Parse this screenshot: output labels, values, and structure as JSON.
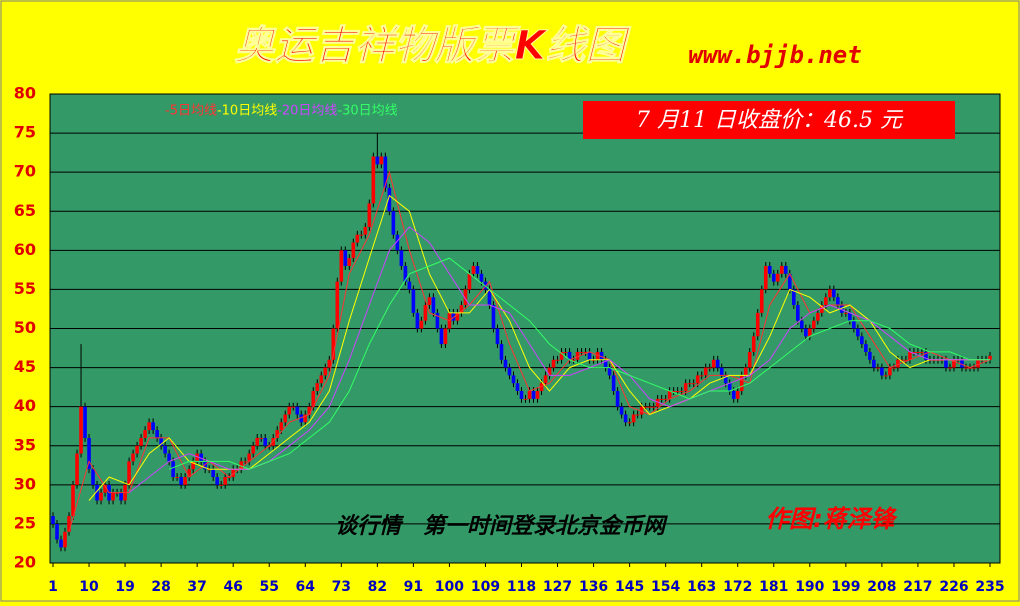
{
  "chart_data": {
    "type": "candlestick",
    "title": "奥运吉祥物版票K线图",
    "site": "www.bjjb.net",
    "price_box": "7 月11 日收盘价：46.5 元",
    "footer": "谈行情　第一时间登录北京金币网",
    "author": "作图:蒋泽锋",
    "up_color": "#ff0000",
    "down_color": "#0000ff",
    "background": "#339966",
    "grid": true,
    "ylim": [
      20,
      80
    ],
    "yticks": [
      20,
      25,
      30,
      35,
      40,
      45,
      50,
      55,
      60,
      65,
      70,
      75,
      80
    ],
    "xlim": [
      1,
      235
    ],
    "xticks": [
      1,
      10,
      19,
      28,
      37,
      46,
      55,
      64,
      73,
      82,
      91,
      100,
      109,
      118,
      127,
      136,
      145,
      154,
      163,
      172,
      181,
      190,
      199,
      208,
      217,
      226,
      235
    ],
    "open": [
      26,
      25,
      23,
      22,
      24,
      26,
      30,
      34,
      40,
      36,
      32,
      30,
      28,
      29,
      30,
      28,
      29,
      29,
      28,
      30,
      33,
      34,
      35,
      36,
      37,
      38,
      37,
      36,
      35,
      34,
      33,
      31,
      31,
      30,
      31,
      32,
      33,
      34,
      33,
      32,
      32,
      31,
      30,
      30,
      31,
      31,
      32,
      32,
      33,
      33,
      34,
      35,
      36,
      36,
      35,
      35,
      36,
      37,
      38,
      39,
      40,
      40,
      39,
      38,
      39,
      40,
      42,
      43,
      44,
      45,
      46,
      50,
      56,
      60,
      58,
      59,
      61,
      62,
      62,
      63,
      66,
      72,
      71,
      72,
      68,
      65,
      62,
      60,
      58,
      56,
      55,
      52,
      50,
      51,
      53,
      54,
      52,
      50,
      48,
      50,
      52,
      51,
      52,
      53,
      55,
      57,
      58,
      57,
      56,
      55,
      53,
      50,
      48,
      46,
      45,
      44,
      43,
      42,
      41,
      41,
      42,
      41,
      42,
      43,
      44,
      45,
      46,
      46,
      47,
      47,
      46,
      46,
      47,
      47,
      47,
      46,
      46,
      47,
      46,
      45,
      44,
      42,
      40,
      39,
      38,
      38,
      39,
      39,
      40,
      40,
      40,
      40,
      41,
      41,
      41,
      42,
      42,
      42,
      42,
      43,
      43,
      43,
      44,
      44,
      45,
      45,
      46,
      45,
      44,
      43,
      42,
      41,
      42,
      44,
      45,
      47,
      49,
      52,
      55,
      58,
      57,
      56,
      57,
      58,
      57,
      55,
      53,
      51,
      50,
      49,
      50,
      51,
      52,
      53,
      54,
      55,
      54,
      53,
      52,
      52,
      51,
      50,
      49,
      48,
      47,
      46,
      45,
      45,
      44,
      44,
      45,
      45,
      46,
      46,
      46,
      47,
      47,
      47,
      47,
      46,
      46,
      46,
      46,
      46,
      45,
      45,
      46,
      46,
      45,
      45,
      45,
      45,
      46,
      46,
      46
    ],
    "high": [
      26.5,
      25.5,
      23.5,
      24.5,
      26.5,
      30.5,
      34.5,
      48,
      40.5,
      36.5,
      32.5,
      30.5,
      29.5,
      30.5,
      30.5,
      29.5,
      29.5,
      29.5,
      30.5,
      33.5,
      34.5,
      35.5,
      36.5,
      37.5,
      38.5,
      38.5,
      37.5,
      36.5,
      35.5,
      34.5,
      33.5,
      31.5,
      31.5,
      31.5,
      32.5,
      33.5,
      34.5,
      34.5,
      33.5,
      32.5,
      32.5,
      31.5,
      30.5,
      31.5,
      31.5,
      32.5,
      32.5,
      33.5,
      33.5,
      34.5,
      35.5,
      36.5,
      36.5,
      36.5,
      35.5,
      36.5,
      37.5,
      38.5,
      39.5,
      40.5,
      40.5,
      40.5,
      39.5,
      39.5,
      40.5,
      42.5,
      43.5,
      44.5,
      45.5,
      46.5,
      50.5,
      56.5,
      60.5,
      60.5,
      59.5,
      61.5,
      62.5,
      62.5,
      63.5,
      66.5,
      72.5,
      75,
      72.5,
      72.5,
      68.5,
      65.5,
      62.5,
      60.5,
      58.5,
      56.5,
      55.5,
      52.5,
      51.5,
      53.5,
      54.5,
      54.5,
      52.5,
      50.5,
      50.5,
      52.5,
      52.5,
      52.5,
      53.5,
      55.5,
      57.5,
      58.5,
      58.5,
      57.5,
      56.5,
      55.5,
      53.5,
      50.5,
      48.5,
      46.5,
      45.5,
      44.5,
      43.5,
      42.5,
      41.5,
      42.5,
      42.5,
      42.5,
      43.5,
      44.5,
      45.5,
      46.5,
      46.5,
      47.5,
      47.5,
      47.5,
      46.5,
      47.5,
      47.5,
      47.5,
      47.5,
      46.5,
      47.5,
      47.5,
      46.5,
      45.5,
      44.5,
      42.5,
      40.5,
      39.5,
      38.5,
      39.5,
      39.5,
      40.5,
      40.5,
      40.5,
      40.5,
      41.5,
      41.5,
      41.5,
      42.5,
      42.5,
      42.5,
      42.5,
      43.5,
      43.5,
      43.5,
      44.5,
      44.5,
      45.5,
      45.5,
      46.5,
      46.5,
      45.5,
      44.5,
      43.5,
      42.5,
      42.5,
      44.5,
      45.5,
      47.5,
      49.5,
      52.5,
      55.5,
      58.5,
      58.5,
      57.5,
      57.5,
      58.5,
      58.5,
      57.5,
      55.5,
      53.5,
      51.5,
      50.5,
      50.5,
      51.5,
      52.5,
      53.5,
      54.5,
      55.5,
      55.5,
      54.5,
      53.5,
      52.5,
      52.5,
      51.5,
      50.5,
      49.5,
      48.5,
      47.5,
      46.5,
      45.5,
      45.5,
      44.5,
      45.5,
      45.5,
      46.5,
      46.5,
      46.5,
      47.5,
      47.5,
      47.5,
      47.5,
      47.5,
      46.5,
      46.5,
      46.5,
      46.5,
      46.5,
      45.5,
      46.5,
      46.5,
      46.5,
      45.5,
      45.5,
      45.5,
      46.5,
      46.5,
      46.5,
      47
    ],
    "low": [
      24.5,
      22.5,
      21.5,
      21.5,
      23.5,
      25.5,
      29.5,
      33.5,
      35.5,
      31.5,
      29.5,
      27.5,
      27.5,
      28.5,
      27.5,
      27.5,
      28.5,
      27.5,
      27.5,
      29.5,
      32.5,
      33.5,
      34.5,
      35.5,
      36.5,
      36.5,
      35.5,
      34.5,
      33.5,
      32.5,
      30.5,
      30.5,
      29.5,
      29.5,
      30.5,
      31.5,
      32.5,
      32.5,
      31.5,
      31.5,
      30.5,
      29.5,
      29.5,
      29.5,
      30.5,
      30.5,
      31.5,
      31.5,
      32.5,
      32.5,
      33.5,
      34.5,
      35.5,
      34.5,
      34.5,
      34.5,
      35.5,
      36.5,
      37.5,
      38.5,
      39.5,
      38.5,
      37.5,
      37.5,
      38.5,
      39.5,
      41.5,
      42.5,
      43.5,
      44.5,
      45.5,
      49.5,
      55.5,
      57.5,
      57.5,
      58.5,
      60.5,
      61.5,
      61.5,
      62.5,
      65.5,
      70.5,
      70.5,
      67.5,
      64.5,
      61.5,
      59.5,
      57.5,
      55.5,
      54.5,
      51.5,
      49.5,
      49.5,
      50.5,
      52.5,
      51.5,
      49.5,
      47.5,
      47.5,
      49.5,
      50.5,
      50.5,
      51.5,
      52.5,
      54.5,
      56.5,
      56.5,
      55.5,
      54.5,
      52.5,
      49.5,
      47.5,
      45.5,
      44.5,
      43.5,
      42.5,
      41.5,
      40.5,
      40.5,
      40.5,
      40.5,
      40.5,
      41.5,
      42.5,
      43.5,
      44.5,
      45.5,
      45.5,
      46.5,
      45.5,
      45.5,
      45.5,
      46.5,
      46.5,
      45.5,
      45.5,
      45.5,
      45.5,
      44.5,
      43.5,
      41.5,
      39.5,
      38.5,
      37.5,
      37.5,
      37.5,
      38.5,
      38.5,
      39.5,
      39.5,
      39.5,
      39.5,
      40.5,
      40.5,
      40.5,
      41.5,
      41.5,
      41.5,
      41.5,
      42.5,
      42.5,
      42.5,
      43.5,
      43.5,
      44.5,
      44.5,
      44.5,
      43.5,
      42.5,
      41.5,
      40.5,
      40.5,
      41.5,
      43.5,
      44.5,
      46.5,
      48.5,
      51.5,
      54.5,
      56.5,
      55.5,
      55.5,
      56.5,
      56.5,
      54.5,
      52.5,
      50.5,
      49.5,
      48.5,
      48.5,
      49.5,
      50.5,
      51.5,
      52.5,
      53.5,
      53.5,
      52.5,
      51.5,
      51.5,
      50.5,
      49.5,
      48.5,
      47.5,
      46.5,
      45.5,
      44.5,
      44.5,
      43.5,
      43.5,
      43.5,
      44.5,
      44.5,
      45.5,
      45.5,
      45.5,
      46.5,
      46.5,
      46.5,
      45.5,
      45.5,
      45.5,
      45.5,
      45.5,
      44.5,
      44.5,
      44.5,
      45.5,
      44.5,
      44.5,
      44.5,
      44.5,
      44.5,
      45.5,
      45.5,
      45.5
    ],
    "close": [
      25,
      23,
      22,
      24,
      26,
      30,
      34,
      40,
      36,
      32,
      30,
      28,
      29,
      30,
      28,
      29,
      29,
      28,
      30,
      33,
      34,
      35,
      36,
      37,
      38,
      37,
      36,
      35,
      34,
      33,
      31,
      31,
      30,
      31,
      32,
      33,
      34,
      33,
      32,
      32,
      31,
      30,
      30,
      31,
      31,
      32,
      32,
      33,
      33,
      34,
      35,
      36,
      36,
      35,
      35,
      36,
      37,
      38,
      39,
      40,
      40,
      39,
      38,
      39,
      40,
      42,
      43,
      44,
      45,
      46,
      50,
      56,
      60,
      58,
      59,
      61,
      62,
      62,
      63,
      66,
      72,
      71,
      72,
      68,
      65,
      62,
      60,
      58,
      56,
      55,
      52,
      50,
      51,
      53,
      54,
      52,
      50,
      48,
      50,
      52,
      51,
      52,
      53,
      55,
      57,
      58,
      57,
      56,
      55,
      53,
      50,
      48,
      46,
      45,
      44,
      43,
      42,
      41,
      41,
      42,
      41,
      42,
      43,
      44,
      45,
      46,
      46,
      47,
      47,
      46,
      46,
      47,
      47,
      47,
      46,
      46,
      47,
      46,
      45,
      44,
      42,
      40,
      39,
      38,
      38,
      39,
      39,
      40,
      40,
      40,
      40,
      41,
      41,
      41,
      42,
      42,
      42,
      42,
      43,
      43,
      43,
      44,
      44,
      45,
      45,
      46,
      45,
      44,
      43,
      42,
      41,
      42,
      44,
      45,
      47,
      49,
      52,
      55,
      58,
      57,
      56,
      57,
      58,
      57,
      55,
      53,
      51,
      50,
      49,
      50,
      51,
      52,
      53,
      54,
      55,
      54,
      53,
      52,
      52,
      51,
      50,
      49,
      48,
      47,
      46,
      45,
      45,
      44,
      44,
      45,
      45,
      46,
      46,
      46,
      47,
      47,
      47,
      47,
      46,
      46,
      46,
      46,
      46,
      45,
      45,
      46,
      46,
      45,
      45,
      45,
      45,
      46,
      46,
      46,
      46.5
    ],
    "series": [
      {
        "name": "-5日均线",
        "color": "#ff3333",
        "x": [
          5,
          10,
          15,
          20,
          25,
          30,
          35,
          40,
          45,
          50,
          55,
          60,
          65,
          70,
          75,
          80,
          85,
          90,
          95,
          100,
          105,
          110,
          115,
          120,
          125,
          130,
          135,
          140,
          145,
          150,
          155,
          160,
          165,
          170,
          175,
          180,
          185,
          190,
          195,
          200,
          205,
          210,
          215,
          220,
          225,
          230,
          235
        ],
        "values": [
          24,
          33,
          29,
          29,
          36,
          36,
          31,
          33,
          31,
          33,
          35,
          38,
          39,
          44,
          57,
          62,
          70,
          60,
          52,
          51,
          53,
          56,
          48,
          42,
          43,
          46,
          47,
          46,
          40,
          39,
          41,
          42,
          44,
          44,
          43,
          53,
          57,
          52,
          53,
          53,
          49,
          45,
          46,
          47,
          46,
          45,
          46
        ]
      },
      {
        "name": "-10日均线",
        "color": "#ffff00",
        "x": [
          10,
          15,
          20,
          25,
          30,
          35,
          40,
          45,
          50,
          55,
          60,
          65,
          70,
          75,
          80,
          85,
          90,
          95,
          100,
          105,
          110,
          115,
          120,
          125,
          130,
          135,
          140,
          145,
          150,
          155,
          160,
          165,
          170,
          175,
          180,
          185,
          190,
          195,
          200,
          205,
          210,
          215,
          220,
          225,
          230,
          235
        ],
        "values": [
          28,
          31,
          30,
          34,
          36,
          33,
          32,
          32,
          32,
          34,
          36,
          38,
          42,
          51,
          59,
          67,
          65,
          57,
          52,
          52,
          55,
          51,
          45,
          42,
          45,
          46,
          46,
          42,
          39,
          40,
          41,
          43,
          44,
          44,
          49,
          55,
          54,
          52,
          53,
          51,
          47,
          45,
          46,
          46,
          46,
          46
        ]
      },
      {
        "name": "-20日均线",
        "color": "#cc44ff",
        "x": [
          20,
          25,
          30,
          35,
          40,
          45,
          50,
          55,
          60,
          65,
          70,
          75,
          80,
          85,
          90,
          95,
          100,
          105,
          110,
          115,
          120,
          125,
          130,
          135,
          140,
          145,
          150,
          155,
          160,
          165,
          170,
          175,
          180,
          185,
          190,
          195,
          200,
          205,
          210,
          215,
          220,
          225,
          230,
          235
        ],
        "values": [
          29,
          31,
          33,
          34,
          33,
          32,
          32,
          33,
          35,
          37,
          40,
          46,
          53,
          60,
          63,
          61,
          57,
          53,
          53,
          52,
          48,
          44,
          44,
          45,
          46,
          44,
          41,
          40,
          41,
          42,
          43,
          44,
          46,
          50,
          52,
          53,
          52,
          51,
          49,
          47,
          46,
          46,
          46,
          46
        ]
      },
      {
        "name": "-30日均线",
        "color": "#33ff66",
        "x": [
          30,
          35,
          40,
          45,
          50,
          55,
          60,
          65,
          70,
          75,
          80,
          85,
          90,
          95,
          100,
          105,
          110,
          115,
          120,
          125,
          130,
          135,
          140,
          145,
          150,
          155,
          160,
          165,
          170,
          175,
          180,
          185,
          190,
          195,
          200,
          205,
          210,
          215,
          220,
          225,
          230,
          235
        ],
        "values": [
          32,
          33,
          33,
          33,
          32,
          33,
          34,
          36,
          38,
          42,
          48,
          53,
          57,
          58,
          59,
          57,
          55,
          53,
          51,
          48,
          46,
          45,
          45,
          44,
          43,
          42,
          41,
          42,
          42,
          43,
          45,
          47,
          49,
          50,
          51,
          51,
          50,
          48,
          47,
          47,
          46,
          46
        ]
      }
    ]
  }
}
